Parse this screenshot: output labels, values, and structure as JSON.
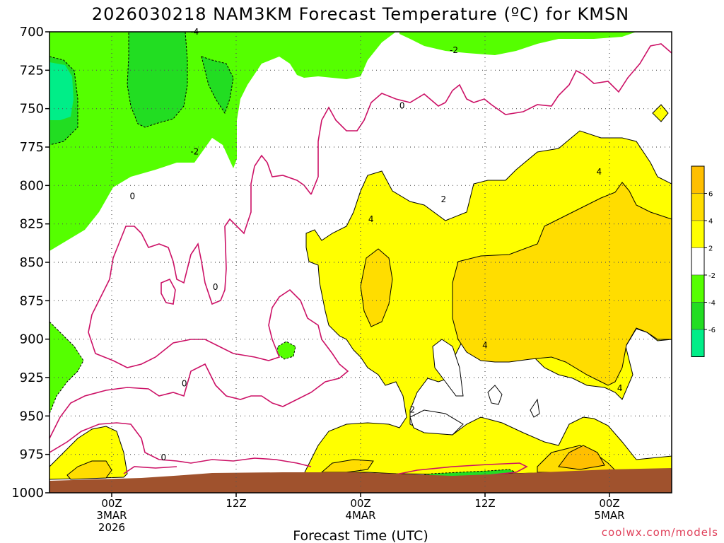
{
  "chart_data": {
    "type": "contour",
    "title": "2026030218 NAM3KM Forecast Temperature (ºC) for KMSN",
    "xlabel": "Forecast Time (UTC)",
    "credit": "coolwx.com/models",
    "y_ticks": [
      "700",
      "725",
      "750",
      "775",
      "800",
      "825",
      "850",
      "875",
      "900",
      "925",
      "950",
      "975",
      "1000"
    ],
    "x_ticks": [
      {
        "hour": 6,
        "lines": [
          "00Z",
          "3MAR",
          "2026"
        ]
      },
      {
        "hour": 18,
        "lines": [
          "12Z"
        ]
      },
      {
        "hour": 30,
        "lines": [
          "00Z",
          "4MAR"
        ]
      },
      {
        "hour": 42,
        "lines": [
          "12Z"
        ]
      },
      {
        "hour": 54,
        "lines": [
          "00Z",
          "5MAR"
        ]
      }
    ],
    "xlim_hours": [
      0,
      60
    ],
    "ylim_hpa": [
      700,
      1000
    ],
    "contour_labels": [
      {
        "text": "-4",
        "hour": 14,
        "hpa": 700
      },
      {
        "text": "-2",
        "hour": 39,
        "hpa": 712
      },
      {
        "text": "0",
        "hour": 34,
        "hpa": 748
      },
      {
        "text": "-2",
        "hour": 14,
        "hpa": 778
      },
      {
        "text": "0",
        "hour": 8,
        "hpa": 807
      },
      {
        "text": "2",
        "hour": 38,
        "hpa": 809
      },
      {
        "text": "4",
        "hour": 31,
        "hpa": 822
      },
      {
        "text": "4",
        "hour": 53,
        "hpa": 791
      },
      {
        "text": "0",
        "hour": 16,
        "hpa": 866
      },
      {
        "text": "4",
        "hour": 42,
        "hpa": 904
      },
      {
        "text": "0",
        "hour": 13,
        "hpa": 929
      },
      {
        "text": "4",
        "hour": 55,
        "hpa": 932
      },
      {
        "text": "2",
        "hour": 35,
        "hpa": 946
      },
      {
        "text": "0",
        "hour": 11,
        "hpa": 977
      }
    ],
    "legend": {
      "labels": [
        "6",
        "4",
        "2",
        "-2",
        "-4",
        "-6"
      ],
      "colors": [
        "#ffbf00",
        "#ffdd00",
        "#ffff00",
        "#ffffff",
        "#55ff00",
        "#22dd22",
        "#00ee88"
      ]
    },
    "colors": {
      "cold_4": "#22dd22",
      "cold_2": "#55ff00",
      "cold_6": "#00ee88",
      "warm_2": "#ffff00",
      "warm_4": "#ffdd00",
      "warm_6": "#ffbf00",
      "zero_line": "#cc1166",
      "ground": "#a0522d"
    }
  }
}
